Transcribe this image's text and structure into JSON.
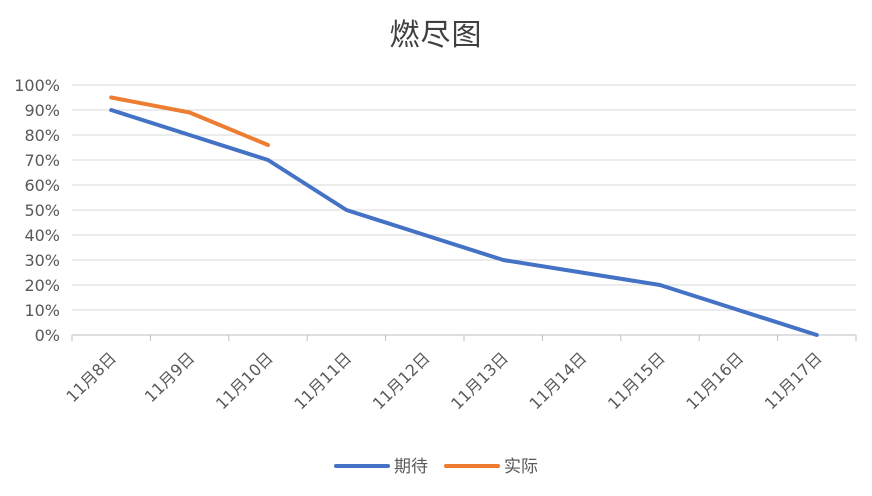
{
  "chart_data": {
    "type": "line",
    "title": "燃尽图",
    "categories": [
      "11月8日",
      "11月9日",
      "11月10日",
      "11月11日",
      "11月12日",
      "11月13日",
      "11月14日",
      "11月15日",
      "11月16日",
      "11月17日"
    ],
    "series": [
      {
        "name": "期待",
        "color": "#4472C4",
        "values": [
          90,
          80,
          70,
          50,
          40,
          30,
          25,
          20,
          10,
          0
        ]
      },
      {
        "name": "实际",
        "color": "#ED7D31",
        "values": [
          95,
          89,
          76,
          null,
          null,
          null,
          null,
          null,
          null,
          null
        ]
      }
    ],
    "yticks": [
      "0%",
      "10%",
      "20%",
      "30%",
      "40%",
      "50%",
      "60%",
      "70%",
      "80%",
      "90%",
      "100%"
    ],
    "ylim": [
      0,
      100
    ],
    "grid": true,
    "legend": "bottom"
  }
}
